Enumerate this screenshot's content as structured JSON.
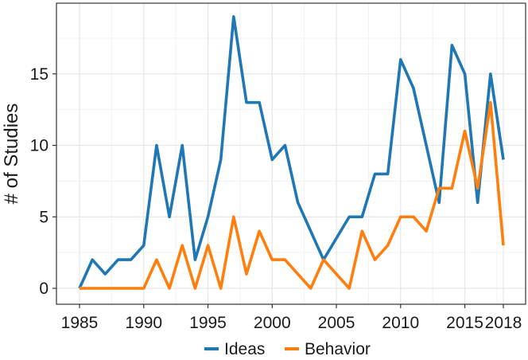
{
  "chart_data": {
    "type": "line",
    "title": "",
    "xlabel": "",
    "ylabel": "# of Studies",
    "xlim": [
      1985,
      2018
    ],
    "ylim": [
      0,
      19
    ],
    "x_ticks": [
      1985,
      1990,
      1995,
      2000,
      2005,
      2010,
      2015,
      2018
    ],
    "y_ticks": [
      0,
      5,
      10,
      15
    ],
    "grid": true,
    "legend_position": "bottom",
    "series": [
      {
        "name": "Ideas",
        "color": "#1f77b4",
        "points": [
          [
            1985,
            0
          ],
          [
            1986,
            2
          ],
          [
            1987,
            1
          ],
          [
            1988,
            2
          ],
          [
            1989,
            2
          ],
          [
            1990,
            3
          ],
          [
            1991,
            10
          ],
          [
            1992,
            5
          ],
          [
            1993,
            10
          ],
          [
            1994,
            2
          ],
          [
            1995,
            5
          ],
          [
            1996,
            9
          ],
          [
            1997,
            19
          ],
          [
            1998,
            13
          ],
          [
            1999,
            13
          ],
          [
            2000,
            9
          ],
          [
            2001,
            10
          ],
          [
            2002,
            6
          ],
          [
            2004,
            2
          ],
          [
            2006,
            5
          ],
          [
            2007,
            5
          ],
          [
            2008,
            8
          ],
          [
            2009,
            8
          ],
          [
            2010,
            16
          ],
          [
            2011,
            14
          ],
          [
            2013,
            6
          ],
          [
            2014,
            17
          ],
          [
            2015,
            15
          ],
          [
            2016,
            6
          ],
          [
            2017,
            15
          ],
          [
            2018,
            9
          ]
        ]
      },
      {
        "name": "Behavior",
        "color": "#ff7f0e",
        "points": [
          [
            1985,
            0
          ],
          [
            1986,
            0
          ],
          [
            1987,
            0
          ],
          [
            1988,
            0
          ],
          [
            1989,
            0
          ],
          [
            1990,
            0
          ],
          [
            1991,
            2
          ],
          [
            1992,
            0
          ],
          [
            1993,
            3
          ],
          [
            1994,
            0
          ],
          [
            1995,
            3
          ],
          [
            1996,
            0
          ],
          [
            1997,
            5
          ],
          [
            1998,
            1
          ],
          [
            1999,
            4
          ],
          [
            2000,
            2
          ],
          [
            2001,
            2
          ],
          [
            2003,
            0
          ],
          [
            2004,
            2
          ],
          [
            2006,
            0
          ],
          [
            2007,
            4
          ],
          [
            2008,
            2
          ],
          [
            2009,
            3
          ],
          [
            2010,
            5
          ],
          [
            2011,
            5
          ],
          [
            2012,
            4
          ],
          [
            2013,
            7
          ],
          [
            2014,
            7
          ],
          [
            2015,
            11
          ],
          [
            2016,
            7
          ],
          [
            2017,
            13
          ],
          [
            2018,
            3
          ]
        ]
      }
    ]
  }
}
